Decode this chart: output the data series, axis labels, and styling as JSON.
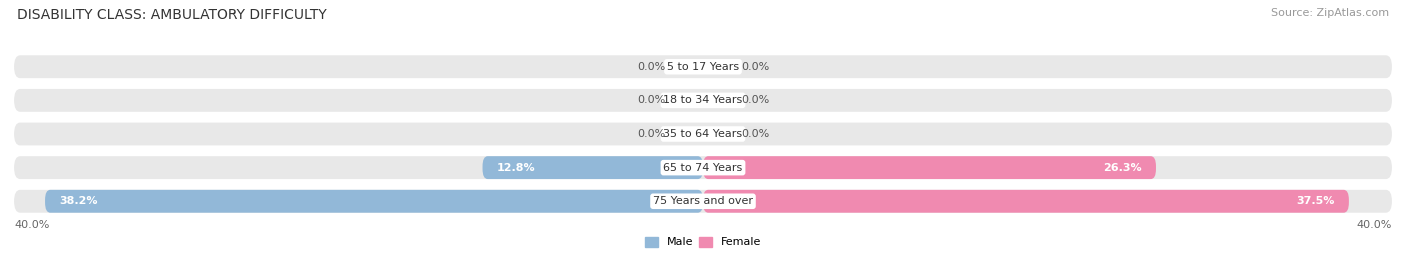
{
  "title": "DISABILITY CLASS: AMBULATORY DIFFICULTY",
  "source": "Source: ZipAtlas.com",
  "categories": [
    "5 to 17 Years",
    "18 to 34 Years",
    "35 to 64 Years",
    "65 to 74 Years",
    "75 Years and over"
  ],
  "male_values": [
    0.0,
    0.0,
    0.0,
    12.8,
    38.2
  ],
  "female_values": [
    0.0,
    0.0,
    0.0,
    26.3,
    37.5
  ],
  "max_val": 40.0,
  "male_color": "#92b8d8",
  "female_color": "#f08ab0",
  "row_bg_color": "#e8e8e8",
  "title_fontsize": 10,
  "source_fontsize": 8,
  "bar_label_fontsize": 8,
  "axis_label_fontsize": 8,
  "category_fontsize": 8,
  "legend_fontsize": 8
}
